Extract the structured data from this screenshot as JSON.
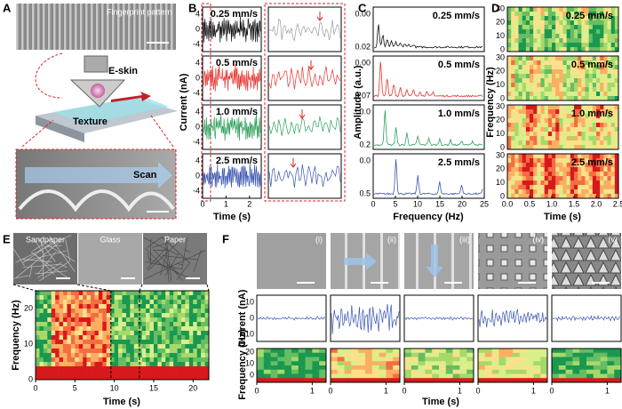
{
  "panel_labels": [
    "A",
    "B",
    "C",
    "D",
    "E",
    "F"
  ],
  "a": {
    "image_label": "Fingerprint pattern",
    "eskin": "E-skin",
    "texture": "Texture",
    "scan": "Scan"
  },
  "speeds": [
    "0.25 mm/s",
    "0.5 mm/s",
    "1.0 mm/s",
    "2.5 mm/s"
  ],
  "b": {
    "y_label": "Current (nA)",
    "x_label": "Time (s)",
    "y_ticks": [
      "4",
      "0",
      "-4"
    ],
    "x_ticks": [
      "0",
      "1",
      "2"
    ]
  },
  "c": {
    "y_label": "Amplitude (a.u.)",
    "x_label": "Frequency (Hz)",
    "y_ticks": [
      [
        "0.02",
        "0.00"
      ],
      [
        "0.07",
        "0.00"
      ],
      [
        "0.2",
        "0.0"
      ],
      [
        "0.5",
        "0.0"
      ]
    ],
    "x_ticks": [
      "0",
      "5",
      "10",
      "15",
      "20",
      "25"
    ]
  },
  "d": {
    "y_label": "Frequency (Hz)",
    "x_label": "Time (s)",
    "y_ticks": [
      "0",
      "10",
      "20",
      "30"
    ],
    "x_ticks": [
      "0.0",
      "0.5",
      "1.0",
      "1.5",
      "2.0",
      "2.5"
    ]
  },
  "e": {
    "images": [
      "Sandpaper",
      "Glass",
      "Paper"
    ],
    "y_label": "Frequency (Hz)",
    "x_label": "Time (s)",
    "y_ticks": [
      "0",
      "10",
      "20"
    ],
    "x_ticks": [
      "0",
      "5",
      "10",
      "15",
      "20"
    ]
  },
  "f": {
    "images": [
      "(i)",
      "(ii)",
      "(iii)",
      "(iv)",
      "(v)"
    ],
    "current_label": "Current (nA)",
    "current_ticks": [
      "-10",
      "0",
      "10"
    ],
    "freq_label": "Frequency (Hz)",
    "freq_ticks": [
      "0",
      "10",
      "20"
    ],
    "x_label": "Time (s)",
    "x_ticks": [
      "0",
      "1"
    ]
  }
}
